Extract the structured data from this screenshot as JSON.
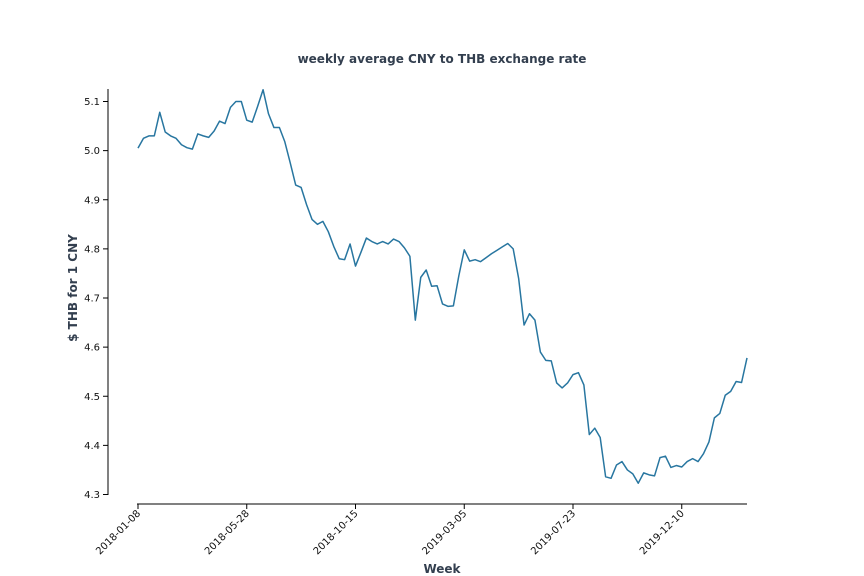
{
  "chart_data": {
    "type": "line",
    "title": "weekly average CNY to THB exchange rate",
    "xlabel": "Week",
    "ylabel": "$ THB for 1 CNY",
    "ylim": [
      4.3,
      5.1
    ],
    "y_ticks": [
      "4.3",
      "4.4",
      "4.5",
      "4.6",
      "4.7",
      "4.8",
      "4.9",
      "5.0",
      "5.1"
    ],
    "x_ticks": [
      "2018-01-08",
      "2018-05-28",
      "2018-10-15",
      "2019-03-05",
      "2019-07-23",
      "2019-12-10"
    ],
    "grid": false,
    "line_color": "#2876a0",
    "series": [
      {
        "values": [
          5.005,
          5.025,
          5.03,
          5.03,
          5.078,
          5.038,
          5.03,
          5.025,
          5.012,
          5.006,
          5.003,
          5.034,
          5.03,
          5.027,
          5.04,
          5.06,
          5.055,
          5.088,
          5.1,
          5.1,
          5.062,
          5.058,
          5.09,
          5.124,
          5.075,
          5.047,
          5.047,
          5.018,
          4.975,
          4.93,
          4.925,
          4.89,
          4.86,
          4.85,
          4.856,
          4.835,
          4.805,
          4.78,
          4.778,
          4.81,
          4.765,
          4.793,
          4.822,
          4.815,
          4.81,
          4.815,
          4.81,
          4.82,
          4.815,
          4.802,
          4.785,
          4.655,
          4.742,
          4.757,
          4.724,
          4.725,
          4.688,
          4.683,
          4.684,
          4.745,
          4.798,
          4.775,
          4.778,
          4.774,
          4.782,
          4.79,
          4.797,
          4.804,
          4.811,
          4.8,
          4.74,
          4.645,
          4.668,
          4.655,
          4.59,
          4.573,
          4.572,
          4.527,
          4.517,
          4.527,
          4.544,
          4.548,
          4.523,
          4.422,
          4.435,
          4.416,
          4.336,
          4.333,
          4.36,
          4.367,
          4.35,
          4.342,
          4.323,
          4.344,
          4.34,
          4.338,
          4.375,
          4.378,
          4.355,
          4.359,
          4.356,
          4.367,
          4.373,
          4.367,
          4.383,
          4.407,
          4.456,
          4.465,
          4.502,
          4.51,
          4.53,
          4.528,
          4.578
        ]
      }
    ]
  }
}
